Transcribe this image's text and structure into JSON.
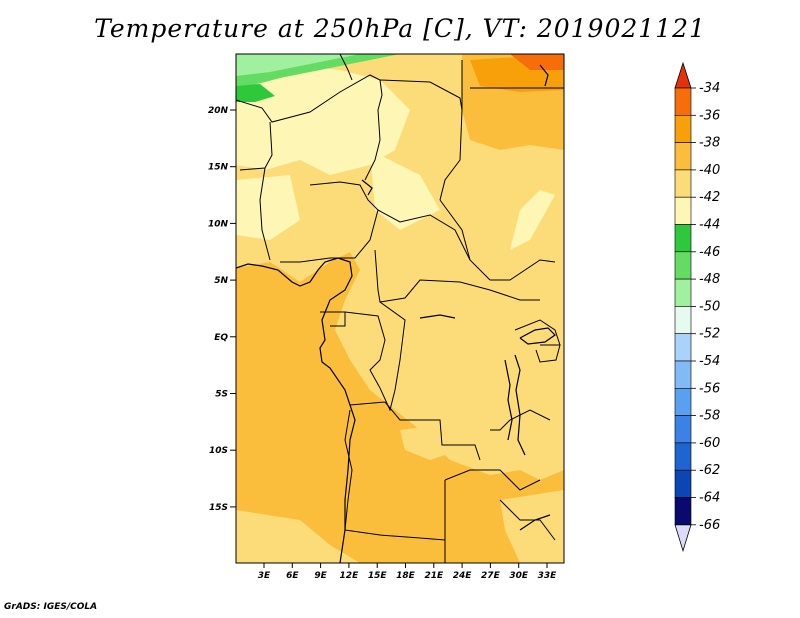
{
  "title": "Temperature at 250hPa [C], VT: 2019021121",
  "footer": "GrADS: IGES/COLA",
  "map": {
    "lon_labels": [
      "3E",
      "6E",
      "9E",
      "12E",
      "15E",
      "18E",
      "21E",
      "24E",
      "27E",
      "30E",
      "33E"
    ],
    "lat_labels": [
      "20N",
      "15N",
      "10N",
      "5N",
      "EQ",
      "5S",
      "10S",
      "15S"
    ]
  },
  "colorbar": {
    "labels": [
      "-34",
      "-36",
      "-38",
      "-40",
      "-42",
      "-44",
      "-46",
      "-48",
      "-50",
      "-52",
      "-54",
      "-56",
      "-58",
      "-60",
      "-62",
      "-64",
      "-66"
    ],
    "colors": [
      "#f03c0a",
      "#f56e0a",
      "#f8a00a",
      "#fbbe3c",
      "#fcdc78",
      "#fef6b4",
      "#2dc83c",
      "#64dc64",
      "#a0f0a0",
      "#e6faf0",
      "#aad2fa",
      "#82baf5",
      "#5aa0f0",
      "#3c82e6",
      "#1e64d2",
      "#0a46b4",
      "#0a0a6e"
    ],
    "top_color": "#e6320a",
    "bottom_color": "#dcdcfa"
  }
}
